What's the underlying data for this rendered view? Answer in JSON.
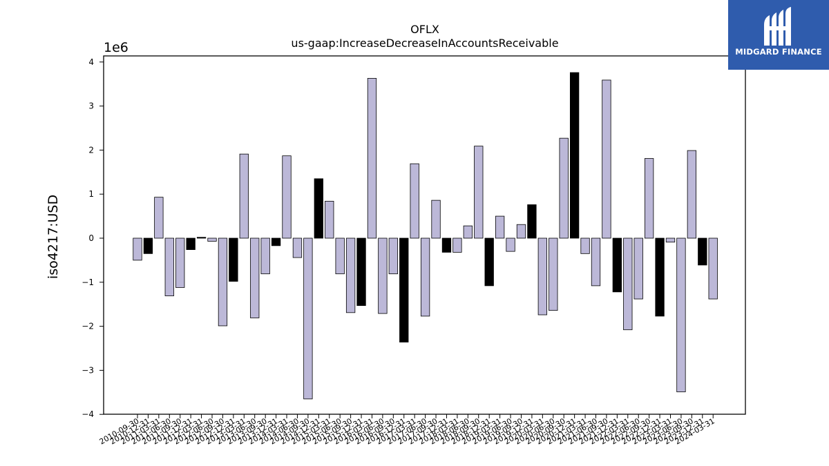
{
  "chart_data": {
    "type": "bar",
    "title": "OFLX",
    "subtitle": "us-gaap:IncreaseDecreaseInAccountsReceivable",
    "ylabel": "iso4217:USD",
    "xlabel": "",
    "y_scale_label": "1e6",
    "ylim": [
      -4.0,
      4.0
    ],
    "yticks": [
      4,
      3,
      2,
      1,
      0,
      -1,
      -2,
      -3,
      -4
    ],
    "ytick_labels": [
      "4",
      "3",
      "2",
      "1",
      "0",
      "−1",
      "−2",
      "−3",
      "−4"
    ],
    "grid": false,
    "legend": "none",
    "colors": {
      "default": "#bcb8d8",
      "highlight": "#000000",
      "edge": "#000000"
    },
    "categories": [
      "2010-09-30",
      "2010-12-31",
      "2011-03-31",
      "2011-06-30",
      "2011-09-30",
      "2011-12-31",
      "2012-03-31",
      "2012-06-30",
      "2012-09-30",
      "2012-12-31",
      "2013-03-31",
      "2013-06-30",
      "2013-09-30",
      "2013-12-31",
      "2014-03-31",
      "2014-06-30",
      "2014-09-30",
      "2014-12-31",
      "2015-03-31",
      "2015-06-30",
      "2015-09-30",
      "2015-12-31",
      "2016-03-31",
      "2016-06-30",
      "2016-09-30",
      "2016-12-31",
      "2017-03-31",
      "2017-06-30",
      "2017-09-30",
      "2017-12-31",
      "2018-03-31",
      "2018-06-30",
      "2018-09-30",
      "2018-12-31",
      "2019-03-31",
      "2019-06-30",
      "2019-09-30",
      "2019-12-31",
      "2020-03-31",
      "2020-06-30",
      "2020-09-30",
      "2020-12-31",
      "2021-03-31",
      "2021-06-30",
      "2021-09-30",
      "2021-12-31",
      "2022-03-31",
      "2022-06-30",
      "2022-09-30",
      "2022-12-31",
      "2023-03-31",
      "2023-06-30",
      "2023-09-30",
      "2023-12-31",
      "2024-03-31"
    ],
    "values": [
      -0.5,
      -0.35,
      0.93,
      -1.31,
      -1.12,
      -0.26,
      0.02,
      -0.07,
      -1.99,
      -0.98,
      1.91,
      -1.81,
      -0.81,
      -0.17,
      1.87,
      -0.44,
      -3.65,
      1.35,
      0.84,
      -0.81,
      -1.69,
      -1.53,
      3.63,
      -1.71,
      -0.81,
      -2.36,
      1.69,
      -1.77,
      0.86,
      -0.32,
      -0.32,
      0.28,
      2.09,
      -1.08,
      0.5,
      -0.3,
      0.31,
      0.76,
      -1.74,
      -1.64,
      2.27,
      3.76,
      -0.35,
      -1.08,
      3.59,
      -1.22,
      -2.08,
      -1.38,
      1.81,
      -1.77,
      -0.09,
      -3.49,
      1.99,
      -0.61,
      -1.38
    ],
    "highlighted": [
      false,
      true,
      false,
      false,
      false,
      true,
      true,
      false,
      false,
      true,
      false,
      false,
      false,
      true,
      false,
      false,
      false,
      true,
      false,
      false,
      false,
      true,
      false,
      false,
      false,
      true,
      false,
      false,
      false,
      true,
      false,
      false,
      false,
      true,
      false,
      false,
      false,
      true,
      false,
      false,
      false,
      true,
      false,
      false,
      false,
      true,
      false,
      false,
      false,
      true,
      false,
      false,
      false,
      true,
      false
    ]
  },
  "logo": {
    "text": "MIDGARD FINANCE",
    "icon": "midgard-logo-icon",
    "background": "#2f5cad"
  }
}
